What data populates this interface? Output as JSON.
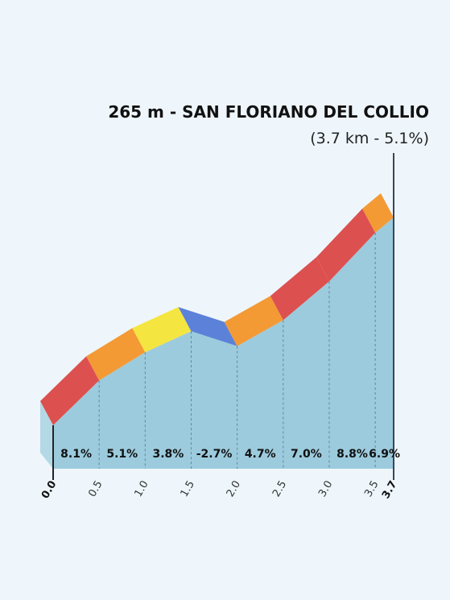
{
  "chart_data": {
    "type": "area",
    "title": "265 m - SAN FLORIANO DEL COLLIO",
    "subtitle": "(3.7 km - 5.1%)",
    "x_ticks": [
      "0.0",
      "0.5",
      "1.0",
      "1.5",
      "2.0",
      "2.5",
      "3.0",
      "3.5",
      "3.7"
    ],
    "xlim": [
      0,
      3.7
    ],
    "segments": [
      {
        "start": 0.0,
        "end": 0.5,
        "grade": "8.1%",
        "color": "#dd5050"
      },
      {
        "start": 0.5,
        "end": 1.0,
        "grade": "5.1%",
        "color": "#f39a35"
      },
      {
        "start": 1.0,
        "end": 1.5,
        "grade": "3.8%",
        "color": "#f5e540"
      },
      {
        "start": 1.5,
        "end": 2.0,
        "grade": "-2.7%",
        "color": "#5b82d8"
      },
      {
        "start": 2.0,
        "end": 2.5,
        "grade": "4.7%",
        "color": "#f39a35"
      },
      {
        "start": 2.5,
        "end": 3.0,
        "grade": "7.0%",
        "color": "#dd5050"
      },
      {
        "start": 3.0,
        "end": 3.5,
        "grade": "8.8%",
        "color": "#dd5050"
      },
      {
        "start": 3.5,
        "end": 3.7,
        "grade": "6.9%",
        "color": "#f39a35"
      }
    ],
    "fill_color": "#9ccbdd",
    "side_color": "#b3d8e6",
    "grid": true
  }
}
